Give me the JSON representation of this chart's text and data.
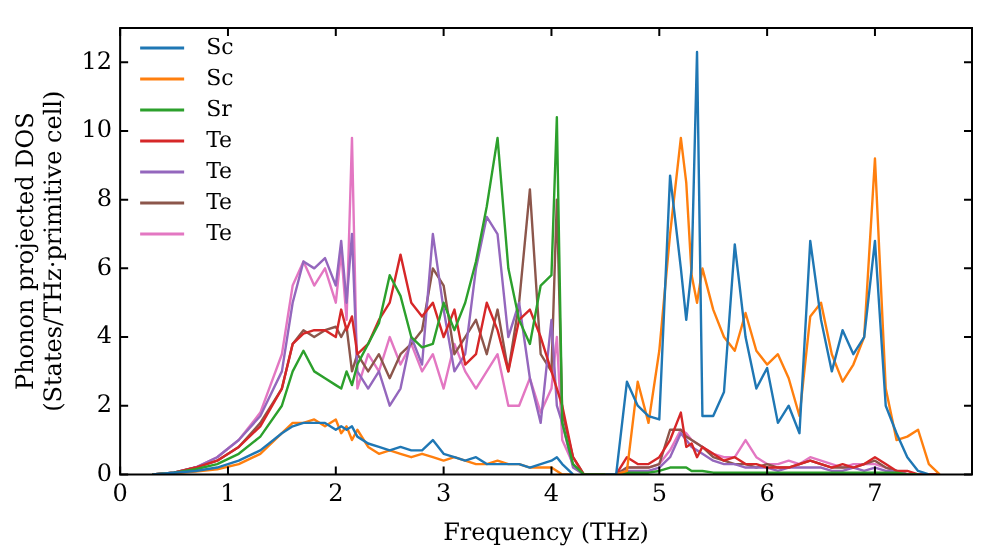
{
  "chart_data": {
    "type": "line",
    "xlabel": "Frequency (THz)",
    "ylabel": "Phonon projected DOS\n(States/THz·primitive cell)",
    "x": [
      0.3,
      0.5,
      0.7,
      0.9,
      1.1,
      1.3,
      1.5,
      1.6,
      1.7,
      1.8,
      1.9,
      2.0,
      2.05,
      2.1,
      2.15,
      2.2,
      2.3,
      2.4,
      2.5,
      2.6,
      2.7,
      2.8,
      2.9,
      3.0,
      3.1,
      3.2,
      3.3,
      3.4,
      3.5,
      3.6,
      3.7,
      3.8,
      3.9,
      4.0,
      4.05,
      4.1,
      4.2,
      4.3,
      4.5,
      4.6,
      4.7,
      4.8,
      4.9,
      5.0,
      5.1,
      5.2,
      5.25,
      5.3,
      5.35,
      5.4,
      5.5,
      5.6,
      5.7,
      5.8,
      5.9,
      6.0,
      6.1,
      6.2,
      6.3,
      6.4,
      6.5,
      6.6,
      6.7,
      6.8,
      6.9,
      7.0,
      7.1,
      7.2,
      7.3,
      7.4,
      7.5,
      7.6
    ],
    "series": [
      {
        "name": "Sc",
        "color": "#1f77b4",
        "values": [
          0,
          0.05,
          0.1,
          0.2,
          0.4,
          0.7,
          1.2,
          1.4,
          1.5,
          1.5,
          1.5,
          1.3,
          1.4,
          1.3,
          1.4,
          1.1,
          0.9,
          0.8,
          0.7,
          0.8,
          0.7,
          0.7,
          1.0,
          0.6,
          0.5,
          0.4,
          0.5,
          0.3,
          0.3,
          0.3,
          0.3,
          0.2,
          0.3,
          0.4,
          0.5,
          0.3,
          0,
          null,
          0,
          0,
          2.7,
          2.0,
          1.7,
          1.6,
          8.7,
          6.0,
          4.5,
          6.0,
          12.3,
          1.7,
          1.7,
          2.4,
          6.7,
          4.0,
          2.5,
          3.1,
          1.5,
          2.0,
          1.2,
          6.8,
          4.5,
          3.0,
          4.2,
          3.5,
          4.0,
          6.8,
          2.0,
          1.2,
          0.5,
          0.1,
          0,
          null
        ]
      },
      {
        "name": "Sc",
        "color": "#ff7f0e",
        "values": [
          0,
          0.03,
          0.08,
          0.15,
          0.3,
          0.6,
          1.2,
          1.5,
          1.5,
          1.6,
          1.4,
          1.6,
          1.2,
          1.4,
          1.0,
          1.3,
          0.8,
          0.6,
          0.7,
          0.6,
          0.5,
          0.6,
          0.5,
          0.4,
          0.5,
          0.4,
          0.3,
          0.3,
          0.4,
          0.3,
          0.3,
          0.2,
          0.2,
          0.2,
          0.1,
          0,
          0,
          null,
          0,
          0,
          0.1,
          2.7,
          1.5,
          3.6,
          7.0,
          9.8,
          8.5,
          5.8,
          5.0,
          6.0,
          4.8,
          4.0,
          3.6,
          4.7,
          3.6,
          3.2,
          3.5,
          2.8,
          1.7,
          4.6,
          5.0,
          3.5,
          2.7,
          3.2,
          4.0,
          9.2,
          2.5,
          1.0,
          1.1,
          1.3,
          0.3,
          0
        ]
      },
      {
        "name": "Sr",
        "color": "#2ca02c",
        "values": [
          0,
          0.05,
          0.15,
          0.3,
          0.6,
          1.1,
          2.0,
          3.0,
          3.6,
          3.0,
          2.8,
          2.6,
          2.5,
          3.0,
          2.6,
          3.2,
          3.8,
          4.4,
          5.8,
          5.2,
          4.0,
          3.7,
          3.8,
          5.0,
          4.2,
          5.0,
          6.2,
          7.8,
          9.8,
          6.0,
          4.5,
          3.8,
          5.5,
          5.8,
          10.4,
          1.5,
          0.3,
          0,
          0,
          0,
          0.05,
          0.05,
          0.05,
          0.1,
          0.2,
          0.2,
          0.2,
          0.1,
          0.1,
          0.1,
          0.05,
          0.05,
          0.05,
          0.05,
          0.05,
          0.05,
          0.05,
          0.05,
          0.05,
          0.05,
          0.05,
          0.05,
          0.05,
          0.05,
          0.05,
          0.05,
          0.05,
          0.05,
          0,
          0,
          null,
          null
        ]
      },
      {
        "name": "Te",
        "color": "#d62728",
        "values": [
          0,
          0.05,
          0.2,
          0.4,
          0.8,
          1.4,
          2.5,
          3.8,
          4.1,
          4.2,
          4.2,
          4.0,
          4.8,
          4.2,
          4.6,
          3.5,
          3.8,
          4.5,
          5.0,
          6.4,
          5.0,
          4.6,
          5.0,
          4.0,
          4.8,
          3.2,
          3.5,
          5.0,
          4.2,
          3.0,
          4.5,
          4.8,
          4.0,
          3.0,
          2.5,
          2.0,
          0.5,
          0,
          0,
          0,
          0.5,
          0.3,
          0.3,
          0.5,
          1.0,
          1.8,
          0.8,
          0.9,
          0.5,
          0.8,
          0.6,
          0.4,
          0.5,
          0.3,
          0.3,
          0.2,
          0.2,
          0.2,
          0.3,
          0.4,
          0.3,
          0.2,
          0.3,
          0.2,
          0.3,
          0.5,
          0.3,
          0.1,
          0.1,
          0,
          0,
          0
        ]
      },
      {
        "name": "Te",
        "color": "#9467bd",
        "values": [
          0,
          0.05,
          0.2,
          0.5,
          1.0,
          1.7,
          3.0,
          5.0,
          6.2,
          6.0,
          6.3,
          5.5,
          6.8,
          5.0,
          7.0,
          3.0,
          2.5,
          3.0,
          2.0,
          2.5,
          4.0,
          3.2,
          7.0,
          4.8,
          3.0,
          3.5,
          6.0,
          7.5,
          7.0,
          4.0,
          5.0,
          2.8,
          1.5,
          4.5,
          2.0,
          1.5,
          0.2,
          0,
          0,
          0,
          0.1,
          0.1,
          0.1,
          0.2,
          0.5,
          1.2,
          1.0,
          0.8,
          0.7,
          0.6,
          0.4,
          0.3,
          0.3,
          0.2,
          0.2,
          0.2,
          0.1,
          0.2,
          0.2,
          0.2,
          0.2,
          0.1,
          0.1,
          0.2,
          0.1,
          0.2,
          0.1,
          0.1,
          0,
          null,
          null,
          null
        ]
      },
      {
        "name": "Te",
        "color": "#8c564b",
        "values": [
          0,
          0.05,
          0.2,
          0.4,
          0.8,
          1.5,
          2.5,
          3.8,
          4.2,
          4.0,
          4.2,
          4.3,
          4.0,
          4.3,
          3.0,
          3.5,
          3.0,
          3.5,
          2.8,
          3.5,
          3.8,
          4.2,
          6.0,
          5.5,
          3.5,
          4.0,
          4.5,
          3.5,
          4.8,
          3.0,
          5.0,
          8.3,
          3.5,
          3.0,
          8.0,
          1.8,
          0.5,
          0,
          0,
          0,
          0.2,
          0.2,
          0.2,
          0.3,
          1.3,
          1.3,
          1.1,
          1.0,
          0.9,
          0.8,
          0.5,
          0.4,
          0.3,
          0.3,
          0.2,
          0.3,
          0.2,
          0.2,
          0.3,
          0.4,
          0.3,
          0.2,
          0.2,
          0.2,
          0.3,
          0.4,
          0.2,
          0.1,
          0,
          0,
          0,
          0
        ]
      },
      {
        "name": "Te",
        "color": "#e377c2",
        "values": [
          0,
          0.05,
          0.2,
          0.5,
          1.0,
          1.8,
          3.5,
          5.5,
          6.2,
          5.5,
          6.0,
          5.0,
          6.5,
          4.5,
          9.8,
          2.5,
          3.5,
          3.0,
          4.0,
          3.2,
          3.8,
          3.0,
          3.5,
          2.5,
          3.8,
          3.0,
          2.5,
          3.0,
          3.5,
          2.0,
          2.0,
          2.8,
          1.8,
          2.5,
          4.0,
          1.0,
          0.3,
          0,
          0,
          0,
          0.2,
          0.2,
          0.2,
          0.3,
          0.7,
          1.3,
          1.2,
          1.0,
          0.9,
          0.8,
          0.6,
          0.5,
          0.5,
          1.0,
          0.5,
          0.3,
          0.3,
          0.4,
          0.3,
          0.5,
          0.4,
          0.3,
          0.2,
          0.3,
          0.3,
          0.3,
          0.2,
          0.1,
          0,
          null,
          null,
          null
        ]
      }
    ],
    "xlim": [
      0,
      7.9
    ],
    "xticks": [
      0,
      1,
      2,
      3,
      4,
      5,
      6,
      7
    ],
    "ylim": [
      0,
      13
    ],
    "yticks": [
      0,
      2,
      4,
      6,
      8,
      10,
      12
    ],
    "grid": false,
    "legend": "top left",
    "marker": "none",
    "line_style": "solid"
  }
}
